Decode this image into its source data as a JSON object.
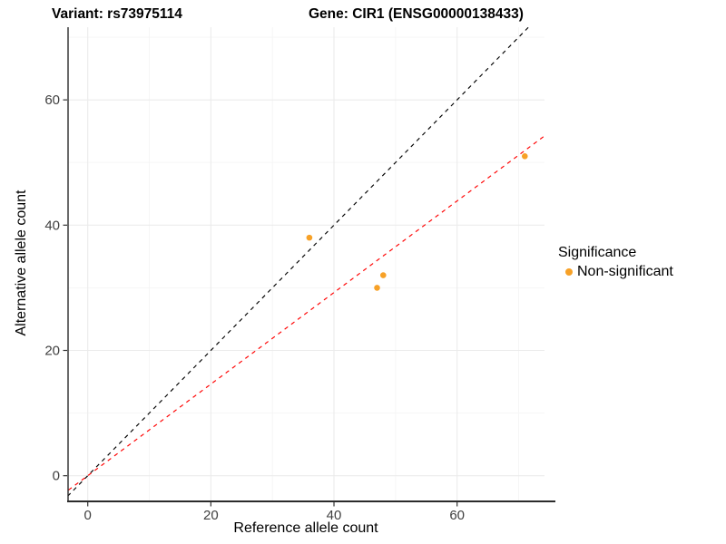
{
  "figure": {
    "title_variant": "Variant: rs73975114",
    "title_gene": "Gene: CIR1 (ENSG00000138433)"
  },
  "legend": {
    "title": "Significance",
    "items": [
      {
        "label": "Non-significant",
        "color": "#F7A127"
      }
    ]
  },
  "chart_data": {
    "type": "scatter",
    "title": "Variant: rs73975114   Gene: CIR1 (ENSG00000138433)",
    "xlabel": "Reference allele count",
    "ylabel": "Alternative allele count",
    "xlim": [
      -3.2,
      74.2
    ],
    "ylim": [
      -4.1,
      71.6
    ],
    "x_ticks": [
      0,
      20,
      40,
      60
    ],
    "y_ticks": [
      0,
      20,
      40,
      60
    ],
    "x_minor_ticks": [
      10,
      30,
      50,
      70
    ],
    "y_minor_ticks": [
      10,
      30,
      50,
      70
    ],
    "grid": true,
    "legend_position": "right",
    "series": [
      {
        "name": "Non-significant",
        "type": "scatter",
        "color": "#F7A127",
        "points": [
          [
            36,
            38
          ],
          [
            48,
            32
          ],
          [
            47,
            30
          ],
          [
            71,
            51
          ]
        ]
      }
    ],
    "lines": [
      {
        "name": "identity-line",
        "color": "#000000",
        "style": "dashed",
        "slope": 1.0,
        "intercept": 0
      },
      {
        "name": "fit-line",
        "color": "#FF0000",
        "style": "dashed",
        "slope": 0.731,
        "intercept": 0
      }
    ],
    "colors": {
      "point": "#F7A127",
      "grid_major": "#EBEBEB",
      "grid_minor": "#F5F5F5",
      "axis_line": "#2B2B2B",
      "tick_label": "#404040"
    }
  }
}
